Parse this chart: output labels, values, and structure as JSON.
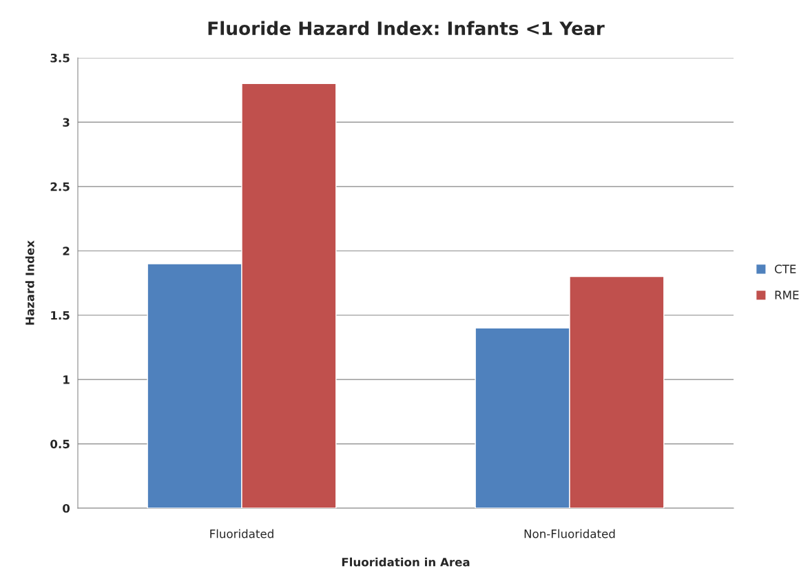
{
  "chart_data": {
    "type": "bar",
    "title": "Fluoride Hazard Index: Infants <1 Year",
    "xlabel": "Fluoridation in Area",
    "ylabel": "Hazard Index",
    "categories": [
      "Fluoridated",
      "Non-Fluoridated"
    ],
    "series": [
      {
        "name": "CTE",
        "color": "#4f81bd",
        "values": [
          1.9,
          1.4
        ]
      },
      {
        "name": "RME",
        "color": "#c0504d",
        "values": [
          3.3,
          1.8
        ]
      }
    ],
    "ylim": [
      0,
      3.5
    ],
    "yticks": [
      0,
      0.5,
      1,
      1.5,
      2,
      2.5,
      3,
      3.5
    ],
    "grid": "y",
    "legend": "right"
  }
}
